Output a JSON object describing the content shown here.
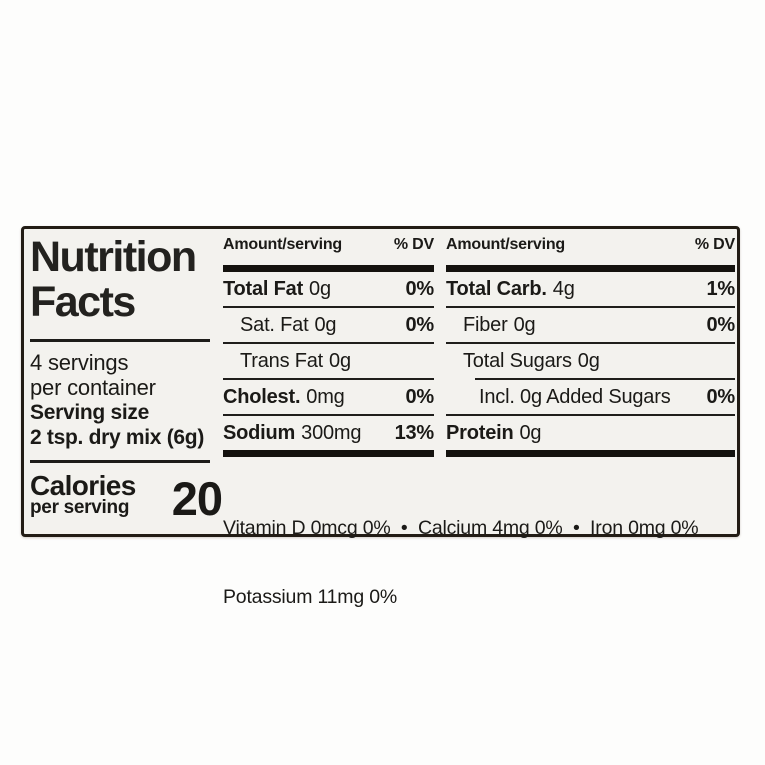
{
  "label": {
    "title_line1": "Nutrition",
    "title_line2": "Facts",
    "servings_line1": "4 servings",
    "servings_line2": "per container",
    "serving_size_label": "Serving size",
    "serving_size_value": "2 tsp. dry mix (6g)",
    "calories_label": "Calories",
    "calories_sublabel": "per serving",
    "calories_value": "20",
    "columns": [
      {
        "header_amount": "Amount/serving",
        "header_dv": "% DV",
        "rows": [
          {
            "name": "Total Fat",
            "amount": "0g",
            "dv": "0%"
          },
          {
            "name": "Sat. Fat",
            "amount": "0g",
            "dv": "0%"
          },
          {
            "name": "Trans Fat",
            "amount": "0g",
            "dv": ""
          },
          {
            "name": "Cholest.",
            "amount": "0mg",
            "dv": "0%"
          },
          {
            "name": "Sodium",
            "amount": "300mg",
            "dv": "13%"
          }
        ]
      },
      {
        "header_amount": "Amount/serving",
        "header_dv": "% DV",
        "rows": [
          {
            "name": "Total Carb.",
            "amount": "4g",
            "dv": "1%"
          },
          {
            "name": "Fiber",
            "amount": "0g",
            "dv": "0%"
          },
          {
            "name": "Total Sugars",
            "amount": "0g",
            "dv": ""
          },
          {
            "name": "Incl. 0g Added Sugars",
            "amount": "",
            "dv": "0%"
          },
          {
            "name": "Protein",
            "amount": "0g",
            "dv": ""
          }
        ]
      }
    ],
    "micronutrients_line1": "Vitamin D 0mcg 0%  •  Calcium 4mg 0%  •  Iron 0mg 0%",
    "micronutrients_line2": "Potassium 11mg 0%"
  },
  "colors": {
    "label_background": "#f3f2ee",
    "page_background": "#fdfdfc",
    "border": "#221c15",
    "text": "#1b1a17"
  }
}
